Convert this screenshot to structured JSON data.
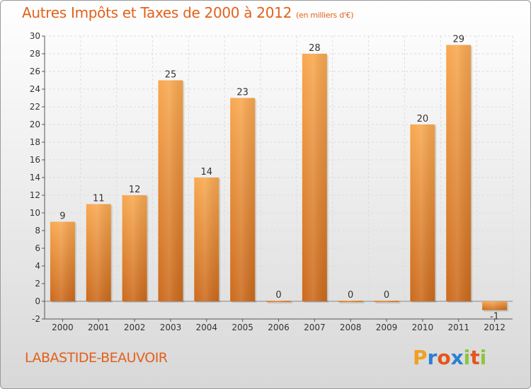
{
  "title": "Autres Impôts et Taxes de 2000 à 2012",
  "unit_label": "(en milliers d'€)",
  "town": "LABASTIDE-BEAUVOIR",
  "logo": {
    "letters": [
      "P",
      "r",
      "o",
      "x",
      "i",
      "t",
      "i"
    ],
    "colors": [
      "#f0a020",
      "#2a7fd4",
      "#e4561c",
      "#2a7fd4",
      "#8cc63f",
      "#e4561c",
      "#8cc63f"
    ]
  },
  "colors": {
    "accent": "#e2601c",
    "bar_light": "#f6a24c",
    "bar_dark": "#cc6a1c"
  },
  "chart_data": {
    "type": "bar",
    "categories": [
      "2000",
      "2001",
      "2002",
      "2003",
      "2004",
      "2005",
      "2006",
      "2007",
      "2008",
      "2009",
      "2010",
      "2011",
      "2012"
    ],
    "values": [
      9,
      11,
      12,
      25,
      14,
      23,
      0,
      28,
      0,
      0,
      20,
      29,
      -1
    ],
    "ylim": [
      -2,
      30
    ],
    "yticks": [
      -2,
      0,
      2,
      4,
      6,
      8,
      10,
      12,
      14,
      16,
      18,
      20,
      22,
      24,
      26,
      28,
      30
    ],
    "grid": true
  }
}
